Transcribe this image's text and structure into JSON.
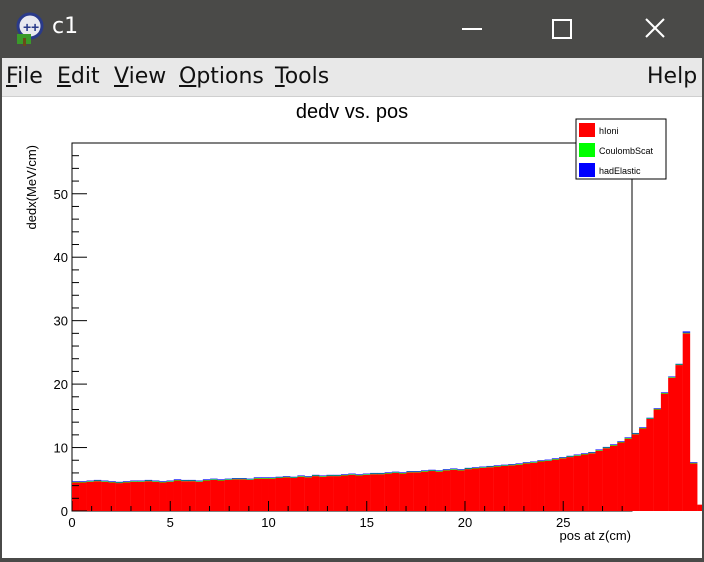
{
  "window": {
    "title": "c1",
    "icon": "root-tree-icon",
    "controls": [
      "minimize-icon",
      "maximize-icon",
      "close-icon"
    ]
  },
  "menu": {
    "items": [
      {
        "label": "File",
        "mnemonic": "F"
      },
      {
        "label": "Edit",
        "mnemonic": "E"
      },
      {
        "label": "View",
        "mnemonic": "V"
      },
      {
        "label": "Options",
        "mnemonic": "O"
      },
      {
        "label": "Tools",
        "mnemonic": "T"
      }
    ],
    "help": {
      "label": "Help"
    }
  },
  "colors": {
    "hIoni": "#ff0000",
    "CoulombScat": "#00ff00",
    "hadElastic": "#0000ff",
    "titlebar": "#4a4a48",
    "menubar": "#e8e8e8"
  },
  "chart_data": {
    "type": "bar",
    "title": "dedv vs. pos",
    "xlabel": "pos at z(cm)",
    "ylabel": "dedx(MeV/cm)",
    "xlim": [
      0,
      28.5
    ],
    "ylim": [
      0,
      58
    ],
    "xticks": [
      0,
      5,
      10,
      15,
      20,
      25
    ],
    "yticks": [
      0,
      10,
      20,
      30,
      40,
      50
    ],
    "bin_width": 0.37,
    "stacked": true,
    "legend_position": "top-right",
    "series": [
      {
        "name": "hIoni",
        "values": [
          4.5,
          4.5,
          4.6,
          4.7,
          4.6,
          4.5,
          4.4,
          4.5,
          4.6,
          4.6,
          4.7,
          4.6,
          4.5,
          4.6,
          4.8,
          4.7,
          4.7,
          4.6,
          4.8,
          4.9,
          4.8,
          4.9,
          5.0,
          5.0,
          4.9,
          5.1,
          5.1,
          5.1,
          5.2,
          5.3,
          5.2,
          5.4,
          5.3,
          5.5,
          5.4,
          5.5,
          5.5,
          5.6,
          5.7,
          5.6,
          5.7,
          5.8,
          5.8,
          5.9,
          6.0,
          5.9,
          6.1,
          6.1,
          6.2,
          6.3,
          6.2,
          6.4,
          6.5,
          6.4,
          6.6,
          6.7,
          6.8,
          6.9,
          7.0,
          7.1,
          7.2,
          7.3,
          7.5,
          7.6,
          7.8,
          7.9,
          8.1,
          8.3,
          8.5,
          8.7,
          8.9,
          9.1,
          9.5,
          9.9,
          10.3,
          10.8,
          11.4,
          12.1,
          13.0,
          14.5,
          16.0,
          18.5,
          21.0,
          23.0,
          28.0,
          7.5,
          1.0,
          0.1
        ]
      },
      {
        "name": "CoulombScat",
        "values": [
          0.1,
          0.1,
          0.1,
          0.1,
          0.1,
          0.1,
          0.1,
          0.1,
          0.1,
          0.1,
          0.1,
          0.1,
          0.1,
          0.1,
          0.1,
          0.1,
          0.1,
          0.1,
          0.1,
          0.1,
          0.1,
          0.1,
          0.1,
          0.1,
          0.1,
          0.1,
          0.1,
          0.1,
          0.1,
          0.1,
          0.1,
          0.1,
          0.1,
          0.1,
          0.1,
          0.1,
          0.1,
          0.1,
          0.1,
          0.1,
          0.1,
          0.1,
          0.1,
          0.1,
          0.1,
          0.1,
          0.1,
          0.1,
          0.1,
          0.1,
          0.1,
          0.1,
          0.1,
          0.1,
          0.1,
          0.1,
          0.1,
          0.1,
          0.1,
          0.1,
          0.1,
          0.1,
          0.1,
          0.1,
          0.1,
          0.1,
          0.1,
          0.1,
          0.1,
          0.1,
          0.1,
          0.1,
          0.1,
          0.1,
          0.1,
          0.1,
          0.1,
          0.1,
          0.1,
          0.1,
          0.1,
          0.1,
          0.1,
          0.1,
          0.1,
          0.1,
          0.0,
          0.0
        ]
      },
      {
        "name": "hadElastic",
        "values": [
          0.1,
          0.1,
          0.1,
          0.1,
          0.1,
          0.1,
          0.1,
          0.1,
          0.1,
          0.1,
          0.1,
          0.1,
          0.1,
          0.1,
          0.1,
          0.1,
          0.1,
          0.1,
          0.1,
          0.1,
          0.1,
          0.1,
          0.1,
          0.1,
          0.1,
          0.1,
          0.1,
          0.1,
          0.1,
          0.1,
          0.1,
          0.1,
          0.1,
          0.1,
          0.1,
          0.1,
          0.1,
          0.1,
          0.1,
          0.1,
          0.1,
          0.1,
          0.1,
          0.1,
          0.1,
          0.1,
          0.1,
          0.1,
          0.1,
          0.1,
          0.1,
          0.1,
          0.1,
          0.1,
          0.1,
          0.1,
          0.1,
          0.1,
          0.1,
          0.1,
          0.1,
          0.1,
          0.1,
          0.1,
          0.1,
          0.1,
          0.1,
          0.1,
          0.1,
          0.1,
          0.1,
          0.1,
          0.1,
          0.1,
          0.1,
          0.1,
          0.1,
          0.1,
          0.1,
          0.1,
          0.1,
          0.1,
          0.1,
          0.1,
          0.2,
          0.1,
          0.0,
          0.0
        ]
      }
    ],
    "legend": [
      {
        "label": "hIoni",
        "color": "#ff0000"
      },
      {
        "label": "CoulombScat",
        "color": "#00ff00"
      },
      {
        "label": "hadElastic",
        "color": "#0000ff"
      }
    ]
  }
}
